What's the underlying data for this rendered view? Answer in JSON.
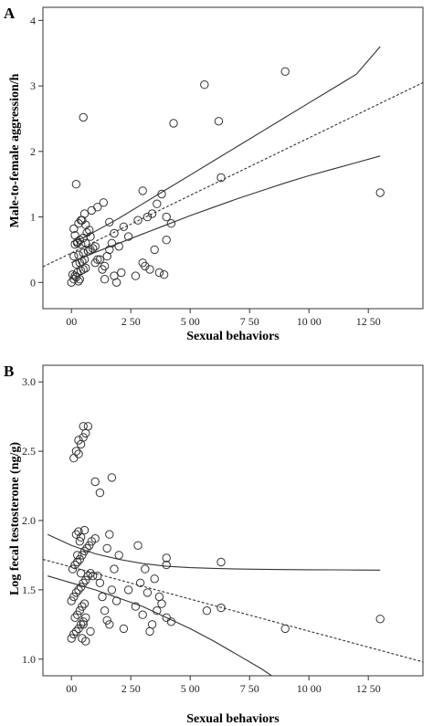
{
  "chart_data": [
    {
      "type": "scatter",
      "panel": "A",
      "xlabel": "Sexual behaviors",
      "ylabel": "Male-to-female aggression/h",
      "xlim": [
        -1.2,
        14.8
      ],
      "ylim": [
        -0.4,
        4.2
      ],
      "x_ticks": [
        0,
        2.5,
        5,
        7.5,
        10,
        12.5
      ],
      "x_tick_labels": [
        "00",
        "2 50",
        "5 00",
        "7 50",
        "10 00",
        "12 50"
      ],
      "y_ticks": [
        0,
        1,
        2,
        3,
        4
      ],
      "y_tick_labels": [
        "0",
        "1",
        "2",
        "3",
        "4"
      ],
      "fit": {
        "x": [
          -1.2,
          14.8
        ],
        "y": [
          0.24,
          3.05
        ]
      },
      "ci_upper": {
        "x": [
          0,
          0.5,
          1,
          2,
          3,
          4,
          5,
          6,
          7,
          8,
          9,
          10,
          11,
          12,
          13
        ],
        "y": [
          0.62,
          0.68,
          0.78,
          0.98,
          1.2,
          1.42,
          1.64,
          1.86,
          2.08,
          2.3,
          2.52,
          2.74,
          2.96,
          3.18,
          3.6
        ]
      },
      "ci_lower": {
        "x": [
          0,
          1,
          2,
          3,
          4,
          5,
          6,
          7,
          8,
          9,
          10,
          11,
          12,
          13
        ],
        "y": [
          0.3,
          0.46,
          0.6,
          0.74,
          0.88,
          1.02,
          1.15,
          1.28,
          1.4,
          1.52,
          1.63,
          1.73,
          1.83,
          1.93
        ]
      },
      "points": {
        "x": [
          0.0,
          0.1,
          0.2,
          0.3,
          0.05,
          0.15,
          0.25,
          0.4,
          0.5,
          0.6,
          0.2,
          0.35,
          0.45,
          0.55,
          0.1,
          0.3,
          0.5,
          0.7,
          0.8,
          0.9,
          1.0,
          0.4,
          0.6,
          0.25,
          0.35,
          0.5,
          0.15,
          0.65,
          0.75,
          1.0,
          1.2,
          1.3,
          1.4,
          1.5,
          1.6,
          1.7,
          1.8,
          2.0,
          2.2,
          0.1,
          0.3,
          0.55,
          0.85,
          1.1,
          1.35,
          1.6,
          2.4,
          2.8,
          3.0,
          3.2,
          3.4,
          3.6,
          3.8,
          4.0,
          4.2,
          3.0,
          3.3,
          3.7,
          3.9,
          2.7,
          3.1,
          3.5,
          4.0,
          0.2,
          0.45,
          0.8,
          0.6,
          1.4,
          1.8,
          0.5,
          4.3,
          5.6,
          6.2,
          6.3,
          9.0,
          13.0,
          0.15,
          0.7,
          1.1,
          1.9,
          2.1,
          0.35,
          0.25,
          0.4
        ],
        "y": [
          0.0,
          0.05,
          0.08,
          0.02,
          0.12,
          0.1,
          0.15,
          0.18,
          0.2,
          0.22,
          0.28,
          0.3,
          0.32,
          0.35,
          0.4,
          0.42,
          0.45,
          0.48,
          0.5,
          0.52,
          0.55,
          0.58,
          0.6,
          0.62,
          0.65,
          0.68,
          0.72,
          0.76,
          0.8,
          0.3,
          0.35,
          0.2,
          0.25,
          0.4,
          0.5,
          0.6,
          0.75,
          0.55,
          0.85,
          0.82,
          0.9,
          1.05,
          1.1,
          1.15,
          1.22,
          0.92,
          0.7,
          0.95,
          1.4,
          1.0,
          1.05,
          1.2,
          1.35,
          1.0,
          0.9,
          0.3,
          0.2,
          0.15,
          0.12,
          0.1,
          0.25,
          0.5,
          0.65,
          1.5,
          0.95,
          0.7,
          0.88,
          0.05,
          0.1,
          2.52,
          2.43,
          3.02,
          2.46,
          1.6,
          3.22,
          1.37,
          0.58,
          0.48,
          0.35,
          0.0,
          0.15,
          0.05,
          0.6,
          0.95
        ]
      }
    },
    {
      "type": "scatter",
      "panel": "B",
      "xlabel": "Sexual behaviors",
      "ylabel": "Log fecal testosterone (ng/g)",
      "xlim": [
        -1.2,
        14.8
      ],
      "ylim": [
        0.88,
        3.12
      ],
      "x_ticks": [
        0,
        2.5,
        5,
        7.5,
        10,
        12.5
      ],
      "x_tick_labels": [
        "00",
        "2 50",
        "5 00",
        "7 50",
        "10 00",
        "12 50"
      ],
      "y_ticks": [
        1.0,
        1.5,
        2.0,
        2.5,
        3.0
      ],
      "y_tick_labels": [
        "1.0",
        "1.5",
        "2.0",
        "2.5",
        "3.0"
      ],
      "fit": {
        "x": [
          -1.2,
          14.8
        ],
        "y": [
          1.72,
          0.98
        ]
      },
      "ci_upper": {
        "x": [
          -1.0,
          0,
          1,
          2,
          3,
          4,
          5,
          6,
          7,
          8,
          9,
          10,
          11,
          12,
          13
        ],
        "y": [
          1.9,
          1.82,
          1.76,
          1.72,
          1.69,
          1.67,
          1.66,
          1.655,
          1.65,
          1.648,
          1.646,
          1.645,
          1.644,
          1.643,
          1.642
        ]
      },
      "ci_lower": {
        "x": [
          -1.0,
          0,
          1,
          2,
          3,
          4,
          5,
          6,
          7,
          8,
          8.6
        ],
        "y": [
          1.6,
          1.55,
          1.5,
          1.44,
          1.38,
          1.3,
          1.22,
          1.13,
          1.03,
          0.93,
          0.86
        ]
      },
      "points": {
        "x": [
          0.0,
          0.1,
          0.2,
          0.3,
          0.4,
          0.5,
          0.15,
          0.25,
          0.35,
          0.45,
          0.55,
          0.0,
          0.1,
          0.2,
          0.3,
          0.4,
          0.5,
          0.6,
          0.7,
          0.8,
          0.05,
          0.15,
          0.25,
          0.35,
          0.45,
          0.55,
          0.65,
          0.75,
          0.85,
          1.0,
          0.2,
          0.3,
          0.4,
          0.5,
          0.6,
          1.1,
          1.2,
          1.3,
          1.4,
          1.5,
          1.6,
          1.7,
          1.8,
          2.0,
          0.3,
          0.4,
          0.5,
          0.6,
          0.7,
          1.0,
          1.2,
          1.5,
          1.6,
          1.9,
          2.2,
          2.7,
          3.0,
          3.2,
          3.4,
          3.6,
          3.8,
          4.0,
          4.2,
          2.8,
          3.1,
          3.5,
          3.7,
          4.0,
          0.1,
          0.2,
          0.3,
          0.5,
          0.35,
          0.45,
          0.6,
          0.8,
          0.9,
          1.7,
          2.4,
          2.9,
          3.3,
          0.25,
          4.0,
          6.3,
          5.7,
          6.3,
          9.0,
          13.0,
          0.4,
          0.55
        ],
        "y": [
          1.15,
          1.18,
          1.2,
          1.22,
          1.25,
          1.27,
          1.3,
          1.32,
          1.35,
          1.38,
          1.4,
          1.42,
          1.45,
          1.48,
          1.5,
          1.52,
          1.55,
          1.57,
          1.6,
          1.62,
          1.65,
          1.68,
          1.7,
          1.72,
          1.75,
          1.78,
          1.8,
          1.82,
          1.85,
          1.87,
          1.9,
          1.92,
          1.88,
          1.25,
          1.3,
          1.6,
          1.55,
          1.45,
          1.35,
          1.28,
          1.25,
          1.5,
          1.65,
          1.75,
          2.48,
          2.55,
          2.6,
          2.63,
          2.68,
          2.28,
          2.2,
          1.8,
          1.9,
          1.42,
          1.22,
          1.38,
          1.32,
          1.48,
          1.25,
          1.35,
          1.4,
          1.3,
          1.27,
          1.82,
          1.65,
          1.58,
          1.45,
          1.68,
          2.45,
          2.5,
          2.58,
          2.68,
          1.85,
          1.15,
          1.13,
          1.2,
          1.6,
          2.31,
          1.5,
          1.55,
          1.2,
          1.75,
          1.73,
          1.7,
          1.35,
          1.37,
          1.22,
          1.29,
          1.62,
          1.93
        ]
      }
    }
  ]
}
